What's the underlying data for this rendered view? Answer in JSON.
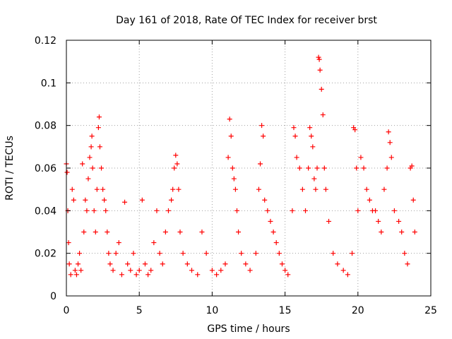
{
  "chart_data": {
    "type": "scatter",
    "title": "Day 161 of 2018, Rate Of TEC Index for receiver brst",
    "xlabel": "GPS time / hours",
    "ylabel": "ROTI / TECUs",
    "xlim": [
      0,
      25
    ],
    "ylim": [
      0,
      0.12
    ],
    "xticks": [
      0,
      5,
      10,
      15,
      20,
      25
    ],
    "xtick_labels": [
      "0",
      "5",
      "10",
      "15",
      "20",
      "25"
    ],
    "yticks": [
      0,
      0.02,
      0.04,
      0.06,
      0.08,
      0.1,
      0.12
    ],
    "ytick_labels": [
      "0",
      "0.02",
      "0.04",
      "0.06",
      "0.08",
      "0.1",
      "0.12"
    ],
    "grid": true,
    "marker": "+",
    "color": "#ff0000",
    "series": [
      {
        "name": "ROTI",
        "x": [
          0.0,
          0.05,
          0.1,
          0.15,
          0.2,
          0.3,
          0.4,
          0.5,
          0.6,
          0.7,
          0.8,
          0.9,
          1.0,
          1.1,
          1.2,
          1.3,
          1.4,
          1.5,
          1.6,
          1.7,
          1.75,
          1.8,
          1.9,
          2.0,
          2.1,
          2.2,
          2.25,
          2.3,
          2.4,
          2.5,
          2.6,
          2.7,
          2.8,
          2.9,
          3.0,
          3.2,
          3.4,
          3.6,
          3.8,
          4.0,
          4.2,
          4.4,
          4.6,
          4.8,
          5.0,
          5.2,
          5.4,
          5.6,
          5.8,
          6.0,
          6.2,
          6.4,
          6.6,
          6.8,
          7.0,
          7.2,
          7.3,
          7.4,
          7.5,
          7.6,
          7.7,
          7.8,
          8.0,
          8.3,
          8.6,
          9.0,
          9.3,
          9.6,
          10.0,
          10.3,
          10.6,
          10.9,
          11.1,
          11.2,
          11.3,
          11.4,
          11.5,
          11.6,
          11.7,
          11.8,
          12.0,
          12.3,
          12.6,
          13.0,
          13.2,
          13.3,
          13.4,
          13.5,
          13.6,
          13.8,
          14.0,
          14.2,
          14.4,
          14.6,
          14.8,
          15.0,
          15.2,
          15.5,
          15.6,
          15.7,
          15.8,
          16.0,
          16.2,
          16.4,
          16.6,
          16.7,
          16.8,
          16.9,
          17.0,
          17.1,
          17.2,
          17.3,
          17.35,
          17.4,
          17.5,
          17.6,
          17.7,
          17.8,
          18.0,
          18.3,
          18.6,
          19.0,
          19.3,
          19.6,
          19.7,
          19.8,
          19.9,
          20.0,
          20.2,
          20.4,
          20.6,
          20.8,
          21.0,
          21.2,
          21.4,
          21.6,
          21.8,
          22.0,
          22.1,
          22.2,
          22.3,
          22.5,
          22.8,
          23.0,
          23.2,
          23.4,
          23.6,
          23.7,
          23.8,
          23.9
        ],
        "y": [
          0.062,
          0.058,
          0.04,
          0.025,
          0.015,
          0.01,
          0.05,
          0.045,
          0.012,
          0.01,
          0.015,
          0.02,
          0.012,
          0.062,
          0.03,
          0.045,
          0.04,
          0.055,
          0.065,
          0.07,
          0.075,
          0.06,
          0.04,
          0.03,
          0.05,
          0.079,
          0.084,
          0.07,
          0.06,
          0.05,
          0.045,
          0.04,
          0.03,
          0.02,
          0.015,
          0.012,
          0.02,
          0.025,
          0.01,
          0.044,
          0.015,
          0.012,
          0.02,
          0.01,
          0.012,
          0.045,
          0.015,
          0.01,
          0.012,
          0.025,
          0.04,
          0.02,
          0.015,
          0.03,
          0.04,
          0.045,
          0.05,
          0.06,
          0.066,
          0.062,
          0.05,
          0.03,
          0.02,
          0.015,
          0.012,
          0.01,
          0.03,
          0.02,
          0.012,
          0.01,
          0.012,
          0.015,
          0.065,
          0.083,
          0.075,
          0.06,
          0.055,
          0.05,
          0.04,
          0.03,
          0.02,
          0.015,
          0.012,
          0.02,
          0.05,
          0.062,
          0.08,
          0.075,
          0.045,
          0.04,
          0.035,
          0.03,
          0.025,
          0.02,
          0.015,
          0.012,
          0.01,
          0.04,
          0.079,
          0.075,
          0.065,
          0.06,
          0.05,
          0.04,
          0.06,
          0.079,
          0.075,
          0.07,
          0.055,
          0.05,
          0.06,
          0.112,
          0.111,
          0.106,
          0.097,
          0.085,
          0.06,
          0.05,
          0.035,
          0.02,
          0.015,
          0.012,
          0.01,
          0.02,
          0.079,
          0.078,
          0.06,
          0.04,
          0.065,
          0.06,
          0.05,
          0.045,
          0.04,
          0.04,
          0.035,
          0.03,
          0.05,
          0.06,
          0.077,
          0.072,
          0.065,
          0.04,
          0.035,
          0.03,
          0.02,
          0.015,
          0.06,
          0.061,
          0.045,
          0.03
        ]
      }
    ]
  }
}
